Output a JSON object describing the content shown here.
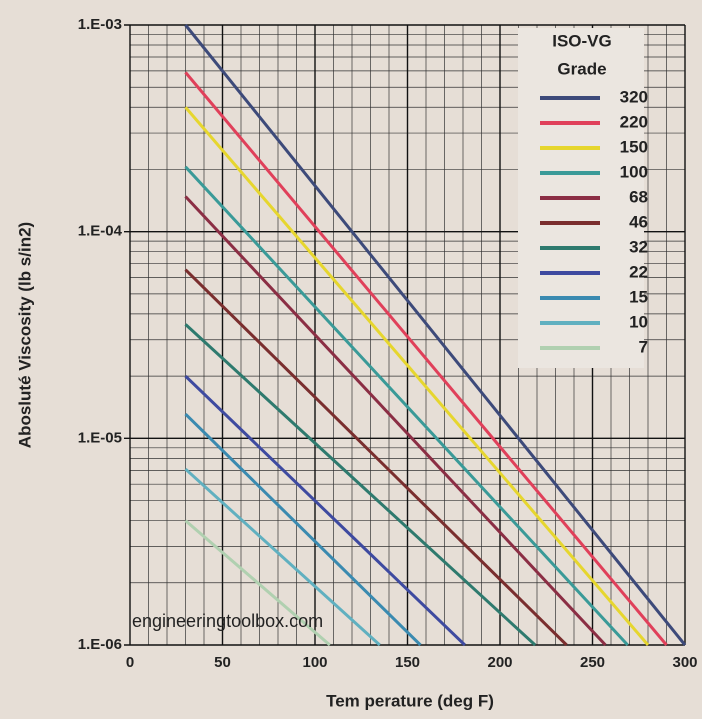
{
  "chart_data": {
    "type": "line",
    "xlabel": "Tem perature (deg F)",
    "ylabel": "Abosluté Viscosity (lb s/in2)",
    "annotation": "engineeringtoolbox.com",
    "legend_title": [
      "ISO-VG",
      "Grade"
    ],
    "log_y": true,
    "grid": true,
    "legend": "upper right",
    "xlim": [
      0,
      300
    ],
    "xticks": [
      0,
      50,
      100,
      150,
      200,
      250,
      300
    ],
    "ylim": [
      1e-06,
      0.001
    ],
    "yticks": [
      {
        "value": 1e-06,
        "label": "1.E-06"
      },
      {
        "value": 1e-05,
        "label": "1.E-05"
      },
      {
        "value": 0.0001,
        "label": "1.E-04"
      },
      {
        "value": 0.001,
        "label": "1.E-03"
      }
    ],
    "series": [
      {
        "name": "320",
        "color": "#3d4a7a",
        "x": [
          30,
          300
        ],
        "values": [
          0.001,
          1e-06
        ]
      },
      {
        "name": "220",
        "color": "#e0405a",
        "x": [
          30,
          290
        ],
        "values": [
          0.00059,
          1e-06
        ]
      },
      {
        "name": "150",
        "color": "#e6d62e",
        "x": [
          30,
          280
        ],
        "values": [
          0.0004,
          1e-06
        ]
      },
      {
        "name": "100",
        "color": "#3a9a98",
        "x": [
          30,
          269
        ],
        "values": [
          0.000206,
          1e-06
        ]
      },
      {
        "name": "68",
        "color": "#8b2e44",
        "x": [
          30,
          257
        ],
        "values": [
          0.000148,
          1e-06
        ]
      },
      {
        "name": "46",
        "color": "#7a2e2e",
        "x": [
          30,
          236
        ],
        "values": [
          6.55e-05,
          1e-06
        ]
      },
      {
        "name": "32",
        "color": "#2e7a6e",
        "x": [
          30,
          219
        ],
        "values": [
          3.56e-05,
          1e-06
        ]
      },
      {
        "name": "22",
        "color": "#3e4aa0",
        "x": [
          30,
          181
        ],
        "values": [
          2e-05,
          1e-06
        ]
      },
      {
        "name": "15",
        "color": "#3a8ab0",
        "x": [
          30,
          157
        ],
        "values": [
          1.31e-05,
          1e-06
        ]
      },
      {
        "name": "10",
        "color": "#60b0c0",
        "x": [
          30,
          135
        ],
        "values": [
          7.1e-06,
          1e-06
        ]
      },
      {
        "name": "7",
        "color": "#b0d0b0",
        "x": [
          30,
          108
        ],
        "values": [
          4e-06,
          1e-06
        ]
      }
    ]
  }
}
